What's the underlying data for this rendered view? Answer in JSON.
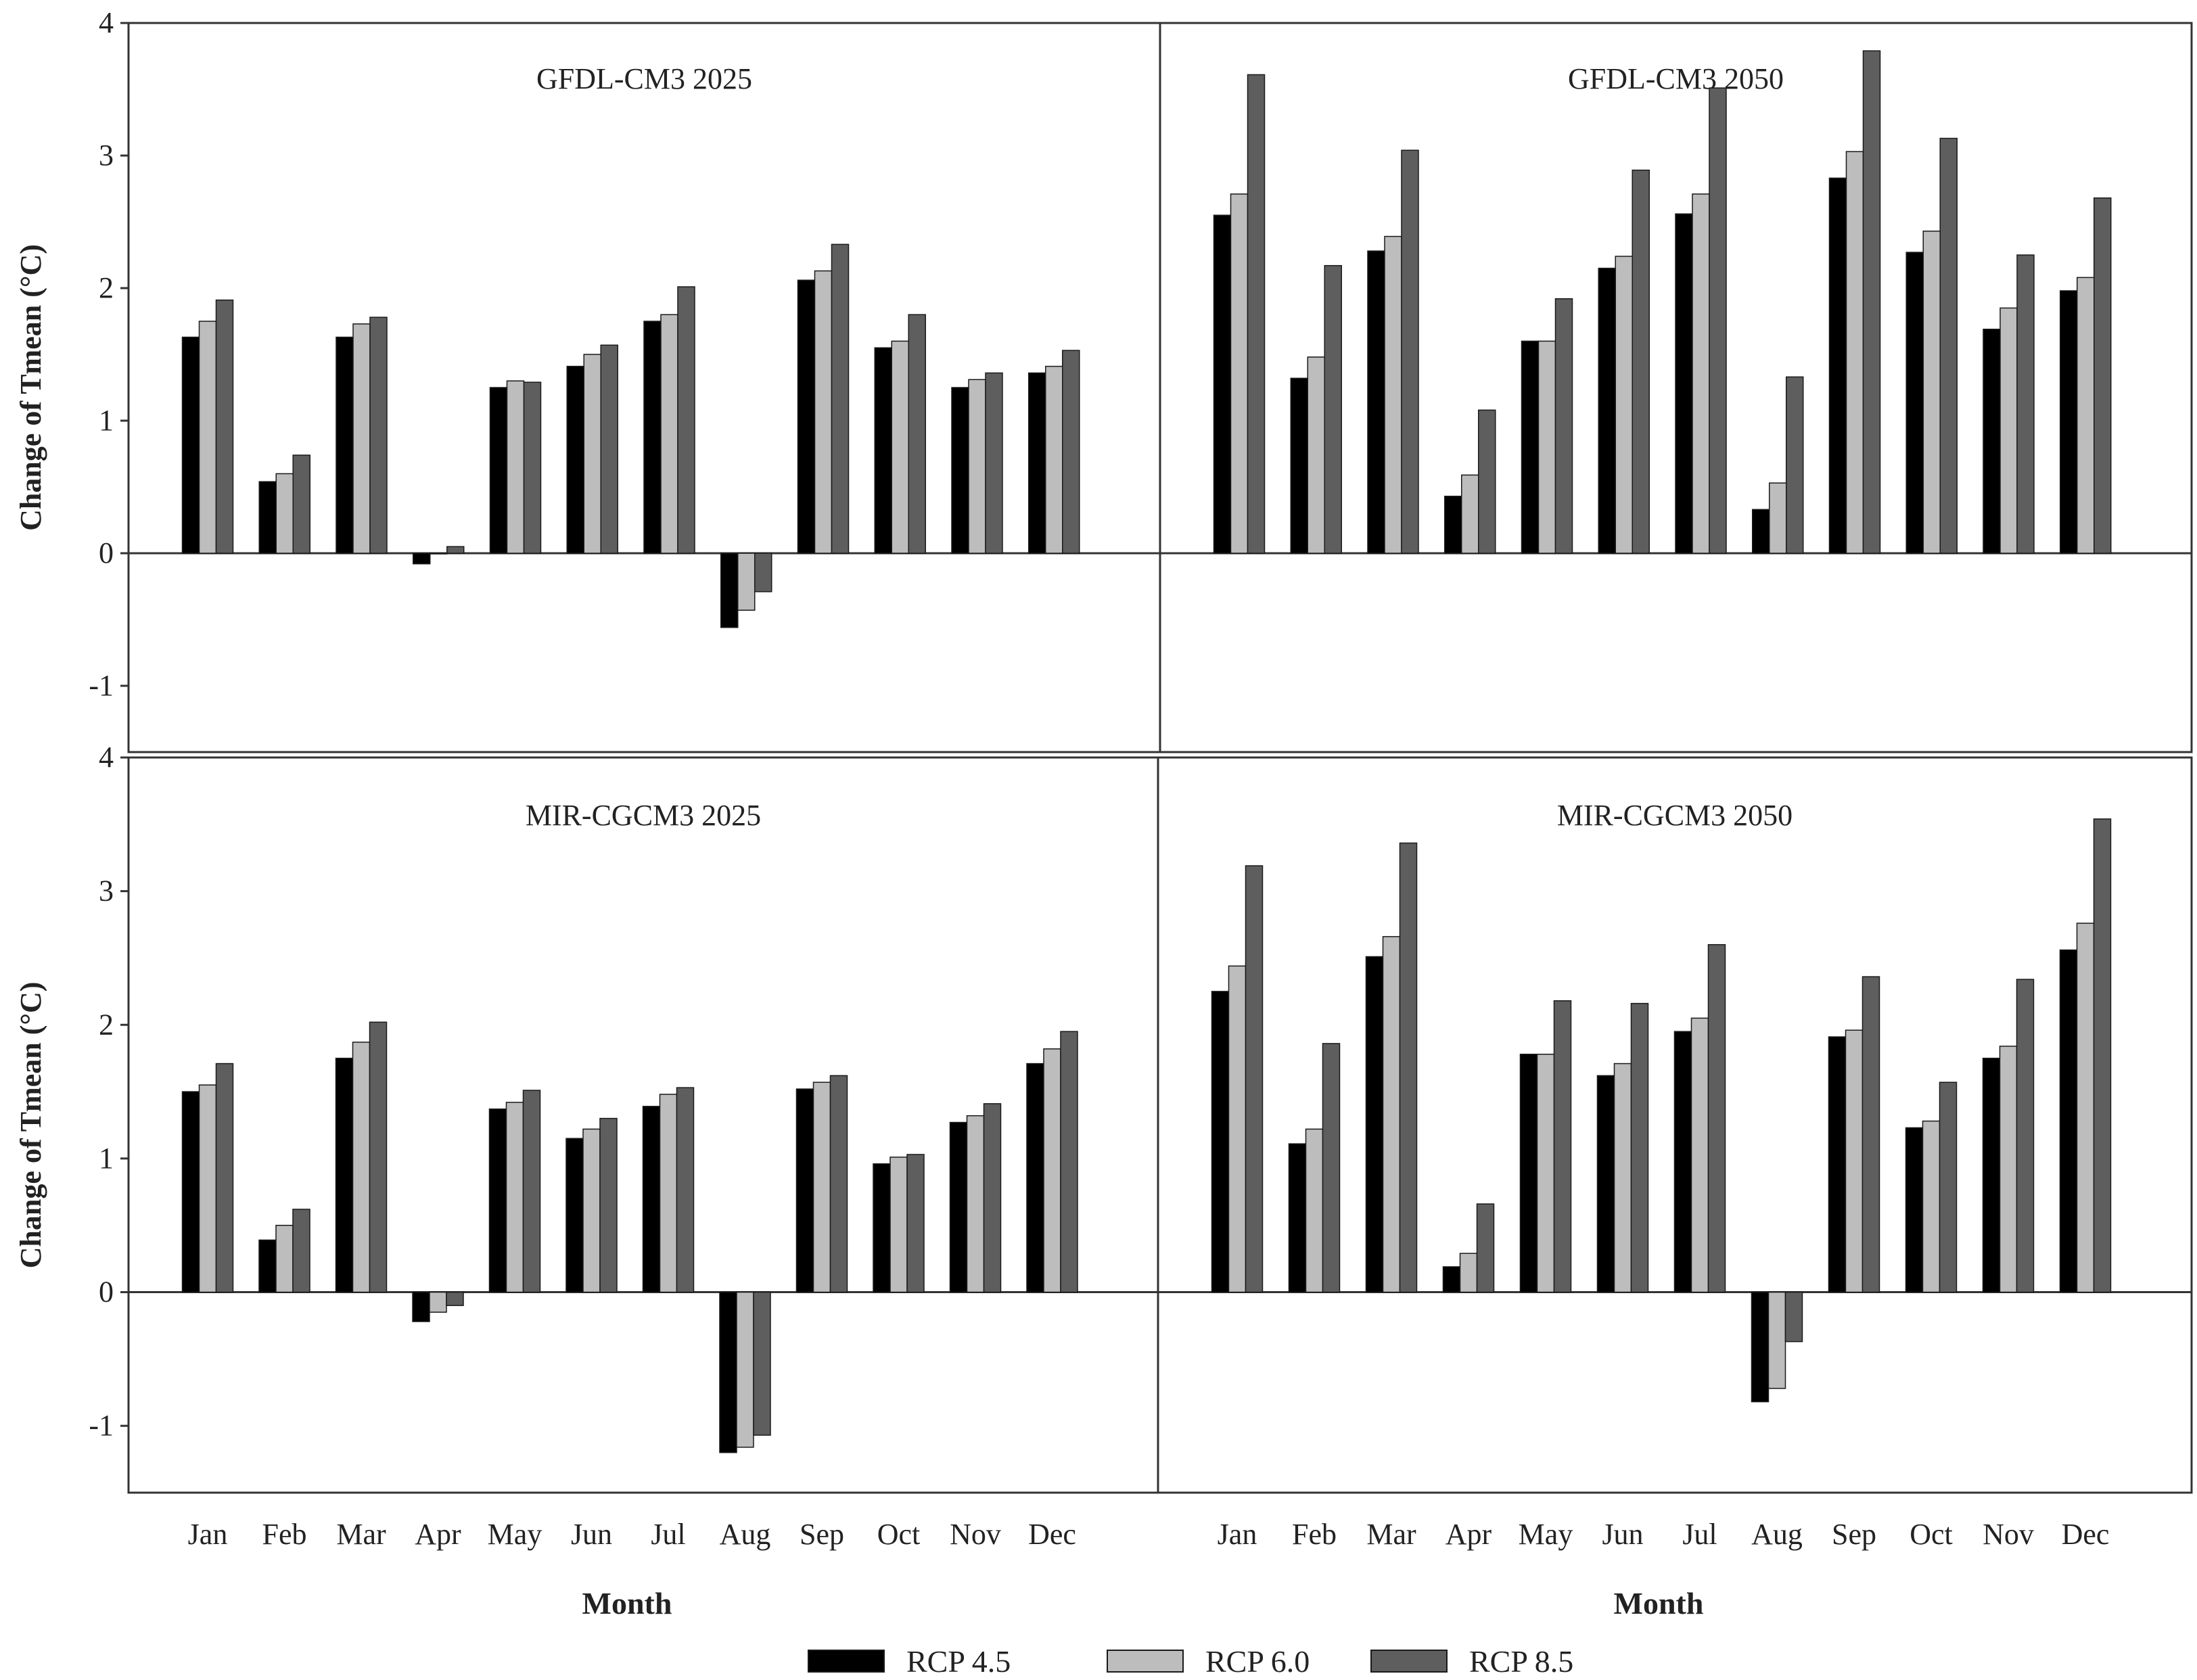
{
  "chart_data": {
    "type": "bar",
    "ylabel": "Change of Tmean (°C)",
    "xlabel": "Month",
    "ylim": [
      -1.5,
      4
    ],
    "yticks": [
      -1,
      0,
      1,
      2,
      3,
      4
    ],
    "categories": [
      "Jan",
      "Feb",
      "Mar",
      "Apr",
      "May",
      "Jun",
      "Jul",
      "Aug",
      "Sep",
      "Oct",
      "Nov",
      "Dec"
    ],
    "legend": [
      {
        "name": "RCP 4.5",
        "color": "#000000"
      },
      {
        "name": "RCP 6.0",
        "color": "#bdbdbd"
      },
      {
        "name": "RCP 8.5",
        "color": "#5e5e5e"
      }
    ],
    "panels": [
      {
        "title": "GFDL-CM3 2025",
        "series": [
          {
            "name": "RCP 4.5",
            "values": [
              1.63,
              0.54,
              1.63,
              -0.08,
              1.25,
              1.41,
              1.75,
              -0.56,
              2.06,
              1.55,
              1.25,
              1.36
            ]
          },
          {
            "name": "RCP 6.0",
            "values": [
              1.75,
              0.6,
              1.73,
              0.0,
              1.3,
              1.5,
              1.8,
              -0.43,
              2.13,
              1.6,
              1.31,
              1.41
            ]
          },
          {
            "name": "RCP 8.5",
            "values": [
              1.91,
              0.74,
              1.78,
              0.05,
              1.29,
              1.57,
              2.01,
              -0.29,
              2.33,
              1.8,
              1.36,
              1.53
            ]
          }
        ]
      },
      {
        "title": "GFDL-CM3 2050",
        "series": [
          {
            "name": "RCP 4.5",
            "values": [
              2.55,
              1.32,
              2.28,
              0.43,
              1.6,
              2.15,
              2.56,
              0.33,
              2.83,
              2.27,
              1.69,
              1.98
            ]
          },
          {
            "name": "RCP 6.0",
            "values": [
              2.71,
              1.48,
              2.39,
              0.59,
              1.6,
              2.24,
              2.71,
              0.53,
              3.03,
              2.43,
              1.85,
              2.08
            ]
          },
          {
            "name": "RCP 8.5",
            "values": [
              3.61,
              2.17,
              3.04,
              1.08,
              1.92,
              2.89,
              3.51,
              1.33,
              3.79,
              3.13,
              2.25,
              2.68
            ]
          }
        ]
      },
      {
        "title": "MIR-CGCM3 2025",
        "series": [
          {
            "name": "RCP 4.5",
            "values": [
              1.5,
              0.39,
              1.75,
              -0.22,
              1.37,
              1.15,
              1.39,
              -1.2,
              1.52,
              0.96,
              1.27,
              1.71
            ]
          },
          {
            "name": "RCP 6.0",
            "values": [
              1.55,
              0.5,
              1.87,
              -0.15,
              1.42,
              1.22,
              1.48,
              -1.16,
              1.57,
              1.01,
              1.32,
              1.82
            ]
          },
          {
            "name": "RCP 8.5",
            "values": [
              1.71,
              0.62,
              2.02,
              -0.1,
              1.51,
              1.3,
              1.53,
              -1.07,
              1.62,
              1.03,
              1.41,
              1.95
            ]
          }
        ]
      },
      {
        "title": "MIR-CGCM3 2050",
        "series": [
          {
            "name": "RCP 4.5",
            "values": [
              2.25,
              1.11,
              2.51,
              0.19,
              1.78,
              1.62,
              1.95,
              -0.82,
              1.91,
              1.23,
              1.75,
              2.56
            ]
          },
          {
            "name": "RCP 6.0",
            "values": [
              2.44,
              1.22,
              2.66,
              0.29,
              1.78,
              1.71,
              2.05,
              -0.72,
              1.96,
              1.28,
              1.84,
              2.76
            ]
          },
          {
            "name": "RCP 8.5",
            "values": [
              3.19,
              1.86,
              3.36,
              0.66,
              2.18,
              2.16,
              2.6,
              -0.37,
              2.36,
              1.57,
              2.34,
              3.54
            ]
          }
        ]
      }
    ]
  }
}
